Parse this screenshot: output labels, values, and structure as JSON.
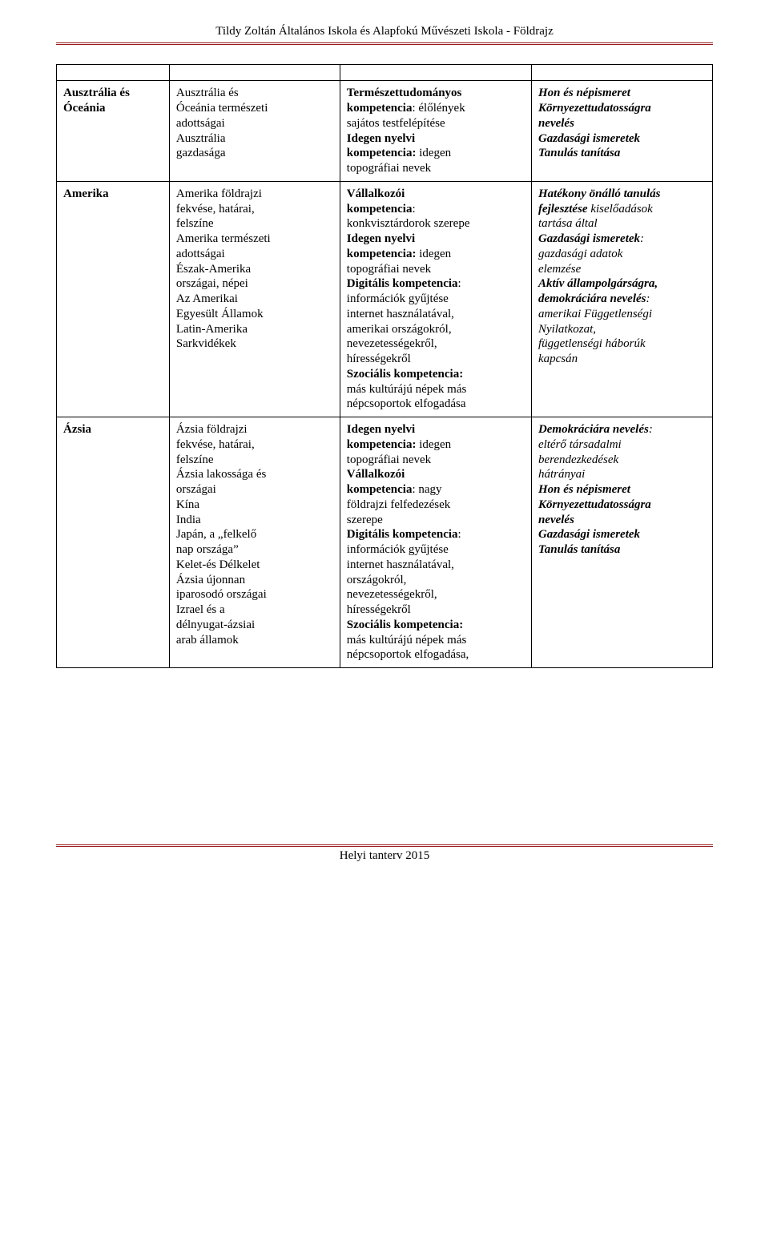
{
  "header": "Tildy Zoltán Általános Iskola és Alapfokú Művészeti Iskola - Földrajz",
  "footer": "Helyi tanterv 2015",
  "rows": {
    "r1": {
      "c1_title": "Ausztrália és Óceánia",
      "c2_lines": [
        "Ausztrália és",
        "Óceánia természeti",
        "adottságai",
        "Ausztrália",
        "gazdasága"
      ],
      "c3": {
        "l1": "Természettudományos",
        "l2a": "kompetencia",
        "l2b": ": élőlények",
        "l3": "sajátos testfelépítése",
        "l4": "Idegen nyelvi",
        "l5a": "kompetencia:",
        "l5b": " idegen",
        "l6": "topográfiai nevek"
      },
      "c4_lines": [
        "Hon és népismeret",
        "Környezettudatosságra",
        "nevelés",
        "Gazdasági ismeretek",
        "Tanulás tanítása"
      ]
    },
    "r2": {
      "c1_title": "Amerika",
      "c2_lines": [
        "Amerika földrajzi",
        "fekvése, határai,",
        "felszíne",
        "Amerika természeti",
        "adottságai",
        "Észak-Amerika",
        "országai, népei",
        "Az Amerikai",
        "Egyesült Államok",
        "Latin-Amerika",
        "Sarkvidékek"
      ],
      "c3": {
        "l1": "Vállalkozói",
        "l2a": "kompetencia",
        "l2b": ":",
        "l3": "konkvisztárdorok szerepe",
        "l4": "Idegen nyelvi",
        "l5a": "kompetencia:",
        "l5b": " idegen",
        "l6": "topográfiai nevek",
        "l7a": "Digitális kompetencia",
        "l7b": ":",
        "l8": "információk gyűjtése",
        "l9": "internet használatával,",
        "l10": "amerikai országokról,",
        "l11": "nevezetességekről,",
        "l12": "hírességekről",
        "l13": "Szociális kompetencia:",
        "l14": "más kultúrájú népek más",
        "l15": "népcsoportok elfogadása"
      },
      "c4": {
        "l1": "Hatékony önálló tanulás",
        "l2a": "fejlesztése",
        "l2b": "kiselőadások",
        "l3": "tartása által",
        "l4a": "Gazdasági",
        "l4b": "ismeretek",
        "l5a": "gazdasági",
        "l5b": "adatok",
        "l6": "elemzése",
        "l7": "Aktív állampolgárságra,",
        "l8a": "demokráciára",
        "l8b": "nevelés",
        "l9a": "amerikai",
        "l9b": "Függetlenségi",
        "l10": "Nyilatkozat,",
        "l11a": "függetlenségi",
        "l11b": "háborúk",
        "l12": "kapcsán"
      }
    },
    "r3": {
      "c1_title": "Ázsia",
      "c2_lines": [
        "Ázsia földrajzi",
        "fekvése, határai,",
        "felszíne",
        "Ázsia lakossága és",
        "országai",
        "Kína",
        "India",
        "Japán, a „felkelő",
        "nap országa”",
        "Kelet-és Délkelet",
        "Ázsia újonnan",
        "iparosodó országai",
        "Izrael és a",
        "délnyugat-ázsiai",
        "arab államok"
      ],
      "c3": {
        "l1": "Idegen nyelvi",
        "l2a": "kompetencia:",
        "l2b": " idegen",
        "l3": "topográfiai nevek",
        "l4": "Vállalkozói",
        "l5a": "kompetencia",
        "l5b": ": nagy",
        "l6": "földrajzi felfedezések",
        "l7": "szerepe",
        "l8a": "Digitális kompetencia",
        "l8b": ":",
        "l9": "információk gyűjtése",
        "l10": "internet használatával,",
        "l11": "országokról,",
        "l12": "nevezetességekről,",
        "l13": "hírességekről",
        "l14": "Szociális kompetencia:",
        "l15": "más kultúrájú népek más",
        "l16": "népcsoportok elfogadása,"
      },
      "c4": {
        "l1a": "Demokráciára",
        "l1b": "nevelés",
        "l2a": "eltérő",
        "l2b": "társadalmi",
        "l3": "berendezkedések",
        "l4": "hátrányai",
        "l5": "Hon és népismeret",
        "l6": "Környezettudatosságra",
        "l7": "nevelés",
        "l8": "Gazdasági ismeretek",
        "l9": "Tanulás tanítása"
      }
    }
  }
}
